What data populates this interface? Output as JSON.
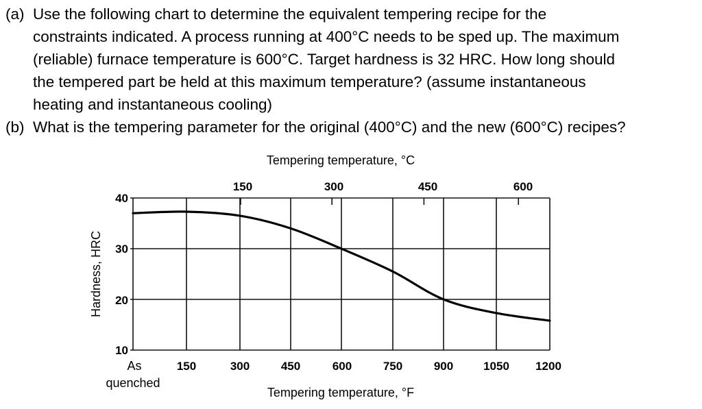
{
  "question": {
    "part_a": {
      "label": "(a)",
      "lines": [
        "Use the following chart to determine the equivalent tempering recipe for the",
        "constraints indicated.  A process running at 400°C needs to be sped up.  The maximum",
        "(reliable) furnace temperature is 600°C.  Target hardness is 32 HRC.  How long should",
        "the tempered part be held at this maximum temperature?  (assume instantaneous",
        "heating and instantaneous cooling)"
      ]
    },
    "part_b": {
      "label": "(b)",
      "lines": [
        "What is the tempering parameter for the original (400°C) and the new (600°C) recipes?"
      ]
    }
  },
  "chart": {
    "top_title": "Tempering temperature, °C",
    "bottom_title": "Tempering temperature, °F",
    "y_title": "Hardness, HRC",
    "top_ticks": [
      "150",
      "300",
      "450",
      "600"
    ],
    "bottom_ticks": [
      "As",
      "150",
      "300",
      "450",
      "600",
      "750",
      "900",
      "1050",
      "1200"
    ],
    "bottom_tick_sub": "quenched",
    "y_ticks": [
      "40",
      "30",
      "20",
      "10"
    ]
  },
  "chart_data": {
    "type": "line",
    "title": "",
    "xlabel": "Tempering temperature, °F",
    "x2label": "Tempering temperature, °C",
    "ylabel": "Hardness, HRC",
    "categories": [
      "As quenched",
      "150",
      "300",
      "450",
      "600",
      "750",
      "900",
      "1050",
      "1200"
    ],
    "x": [
      0,
      150,
      300,
      450,
      600,
      750,
      900,
      1050,
      1200
    ],
    "x_top_ticks_C": [
      150,
      300,
      450,
      600
    ],
    "series": [
      {
        "name": "Hardness",
        "values": [
          37.0,
          37.3,
          36.5,
          34.0,
          30.0,
          25.5,
          20.0,
          17.3,
          15.8
        ]
      }
    ],
    "xlim": [
      0,
      1200
    ],
    "ylim": [
      10,
      40
    ],
    "y_ticks": [
      10,
      20,
      30,
      40
    ],
    "grid": true,
    "legend": "none"
  }
}
